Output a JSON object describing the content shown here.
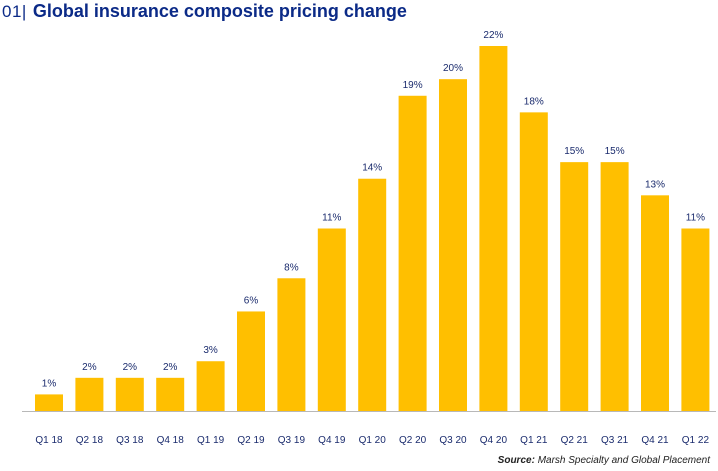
{
  "header": {
    "number": "01|",
    "title": "Global insurance composite pricing change"
  },
  "source": {
    "label": "Source:",
    "text": "Marsh Specialty and Global Placement"
  },
  "colors": {
    "bar": "#FFBF00",
    "title": "#0b2a87",
    "label": "#1a2b6d",
    "axis": "#1a2b6d"
  },
  "chart_data": {
    "type": "bar",
    "title": "Global insurance composite pricing change",
    "xlabel": "",
    "ylabel": "",
    "categories": [
      "Q1 18",
      "Q2 18",
      "Q3 18",
      "Q4 18",
      "Q1 19",
      "Q2 19",
      "Q3 19",
      "Q4 19",
      "Q1 20",
      "Q2 20",
      "Q3 20",
      "Q4 20",
      "Q1 21",
      "Q2 21",
      "Q3 21",
      "Q4 21",
      "Q1 22"
    ],
    "values": [
      1,
      2,
      2,
      2,
      3,
      6,
      8,
      11,
      14,
      19,
      20,
      22,
      18,
      15,
      15,
      13,
      11
    ],
    "data_labels": [
      "1%",
      "2%",
      "2%",
      "2%",
      "3%",
      "6%",
      "8%",
      "11%",
      "14%",
      "19%",
      "20%",
      "22%",
      "18%",
      "15%",
      "15%",
      "13%",
      "11%"
    ],
    "ylim": [
      0,
      22
    ],
    "grid": false,
    "legend": "none"
  }
}
